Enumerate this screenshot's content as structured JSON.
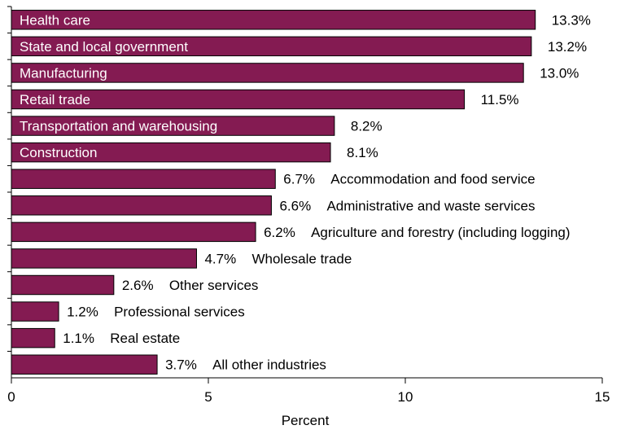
{
  "chart_data": {
    "type": "bar",
    "orientation": "horizontal",
    "title": "",
    "xlabel": "Percent",
    "ylabel": "",
    "xlim": [
      0,
      15
    ],
    "x_ticks": [
      0,
      5,
      10,
      15
    ],
    "grid": false,
    "legend": "none",
    "bar_color": "#841B52",
    "categories": [
      "Health care",
      "State and local government",
      "Manufacturing",
      "Retail trade",
      "Transportation and warehousing",
      "Construction",
      "Accommodation and food service",
      "Administrative and waste services",
      "Agriculture and forestry (including logging)",
      "Wholesale trade",
      "Other services",
      "Professional services",
      "Real estate",
      "All other industries"
    ],
    "values": [
      13.3,
      13.2,
      13.0,
      11.5,
      8.2,
      8.1,
      6.7,
      6.6,
      6.2,
      4.7,
      2.6,
      1.2,
      1.1,
      3.7
    ],
    "value_labels": [
      "13.3%",
      "13.2%",
      "13.0%",
      "11.5%",
      "8.2%",
      "8.1%",
      "6.7%",
      "6.6%",
      "6.2%",
      "4.7%",
      "2.6%",
      "1.2%",
      "1.1%",
      "3.7%"
    ],
    "label_inside_bar": [
      true,
      true,
      true,
      true,
      true,
      true,
      false,
      false,
      false,
      false,
      false,
      false,
      false,
      false
    ]
  }
}
